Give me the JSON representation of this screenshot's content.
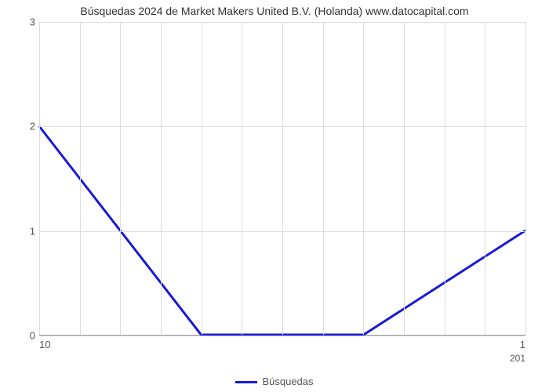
{
  "chart": {
    "type": "line",
    "title": "Búsquedas 2024 de Market Makers United B.V. (Holanda) www.datocapital.com",
    "title_fontsize": 14,
    "title_color": "#333333",
    "background_color": "#ffffff",
    "grid_color": "#dddddd",
    "axis_color": "#999999",
    "series": {
      "name": "Búsquedas",
      "color": "#1818d8",
      "line_width": 3,
      "x": [
        0,
        0.333,
        0.667,
        1.0
      ],
      "y": [
        2.0,
        0.0,
        0.0,
        1.0
      ]
    },
    "ylim": [
      0,
      3
    ],
    "yticks": [
      0,
      1,
      2,
      3
    ],
    "grid_v_count": 12,
    "x_lower_ticks": [
      {
        "label": "10",
        "pos": 0.0,
        "align": "left"
      },
      {
        "label": "1",
        "pos": 1.0,
        "align": "right"
      }
    ],
    "x_upper_tick": {
      "label": "201",
      "pos": 1.0,
      "align": "right"
    },
    "legend": {
      "label": "Búsquedas",
      "color": "#1818d8"
    }
  }
}
